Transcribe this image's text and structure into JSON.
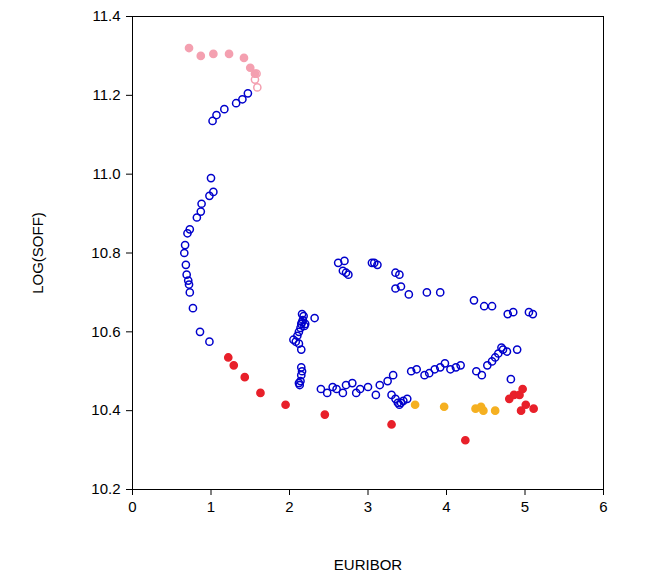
{
  "chart_data": {
    "type": "scatter",
    "x_label": "EURIBOR",
    "y_label": "LOG(SOFF)",
    "xlim": [
      0,
      6
    ],
    "ylim": [
      10.2,
      11.4
    ],
    "xticks": [
      0,
      1,
      2,
      3,
      4,
      5,
      6
    ],
    "yticks": [
      10.2,
      10.4,
      10.6,
      10.8,
      {
        "value": 11,
        "label": "11.0"
      },
      11.2,
      11.4
    ],
    "grid": false,
    "series": [
      {
        "color": "#0000cc",
        "marker": "hollow",
        "x": [
          1.47,
          1.4,
          1.32,
          1.17,
          1.07,
          1.02,
          1.0,
          1.03,
          0.98,
          0.88,
          0.87,
          0.82,
          0.73,
          0.7,
          0.67,
          0.66,
          0.68,
          0.69,
          0.71,
          0.72,
          0.73,
          0.77,
          0.86,
          0.98,
          2.05,
          2.08,
          2.12,
          2.15,
          2.1,
          2.12,
          2.14,
          2.15,
          2.16,
          2.17,
          2.18,
          2.16,
          2.19,
          2.2,
          2.32,
          2.15,
          2.16,
          2.15,
          2.14,
          2.13,
          2.12,
          2.4,
          2.48,
          2.55,
          2.6,
          2.68,
          2.72,
          2.8,
          2.85,
          2.9,
          3.0,
          3.1,
          3.15,
          3.25,
          3.3,
          3.35,
          3.38,
          3.4,
          3.42,
          3.45,
          3.5,
          3.32,
          3.55,
          3.62,
          3.72,
          3.78,
          3.85,
          3.92,
          3.98,
          4.05,
          4.12,
          4.18,
          4.38,
          4.45,
          4.52,
          4.58,
          4.62,
          4.66,
          4.7,
          4.72,
          4.77,
          4.82,
          4.9,
          2.62,
          2.7,
          2.68,
          2.72,
          2.75,
          3.05,
          3.08,
          3.12,
          3.35,
          3.4,
          3.35,
          3.42,
          3.52,
          3.75,
          3.92,
          4.35,
          4.48,
          4.58,
          4.78,
          4.85,
          5.05,
          5.1
        ],
        "y": [
          11.205,
          11.19,
          11.18,
          11.165,
          11.15,
          11.135,
          10.99,
          10.955,
          10.945,
          10.925,
          10.905,
          10.89,
          10.86,
          10.85,
          10.82,
          10.8,
          10.77,
          10.745,
          10.73,
          10.72,
          10.7,
          10.66,
          10.6,
          10.575,
          10.58,
          10.575,
          10.57,
          10.555,
          10.59,
          10.6,
          10.61,
          10.62,
          10.625,
          10.63,
          10.64,
          10.645,
          10.615,
          10.62,
          10.635,
          10.51,
          10.5,
          10.49,
          10.475,
          10.465,
          10.47,
          10.455,
          10.445,
          10.46,
          10.455,
          10.445,
          10.465,
          10.47,
          10.445,
          10.455,
          10.46,
          10.44,
          10.465,
          10.475,
          10.44,
          10.43,
          10.42,
          10.415,
          10.42,
          10.425,
          10.43,
          10.49,
          10.5,
          10.505,
          10.49,
          10.495,
          10.505,
          10.51,
          10.52,
          10.505,
          10.51,
          10.515,
          10.5,
          10.49,
          10.515,
          10.525,
          10.535,
          10.545,
          10.56,
          10.555,
          10.55,
          10.48,
          10.555,
          10.775,
          10.78,
          10.755,
          10.75,
          10.745,
          10.775,
          10.775,
          10.77,
          10.75,
          10.745,
          10.71,
          10.715,
          10.695,
          10.7,
          10.7,
          10.68,
          10.665,
          10.665,
          10.645,
          10.65,
          10.65,
          10.645
        ]
      },
      {
        "color": "#f4a0b0",
        "marker": "filled",
        "x": [
          0.72,
          0.87,
          1.03,
          1.23,
          1.42,
          1.5,
          1.56
        ],
        "y": [
          11.32,
          11.3,
          11.305,
          11.305,
          11.295,
          11.27,
          11.255
        ]
      },
      {
        "color": "#f4a0b0",
        "marker": "hollow",
        "x": [
          1.58,
          1.56,
          1.59
        ],
        "y": [
          11.255,
          11.24,
          11.22
        ]
      },
      {
        "color": "#e8202a",
        "marker": "filled",
        "x": [
          1.22,
          1.29,
          1.43,
          1.63,
          1.95,
          2.45,
          3.3,
          4.24,
          4.8,
          4.86,
          4.93,
          4.97,
          4.95,
          5.01,
          5.11
        ],
        "y": [
          10.535,
          10.515,
          10.485,
          10.445,
          10.415,
          10.39,
          10.365,
          10.325,
          10.43,
          10.44,
          10.44,
          10.455,
          10.4,
          10.415,
          10.405
        ]
      },
      {
        "color": "#f5b021",
        "marker": "filled",
        "x": [
          3.6,
          3.97,
          4.37,
          4.44,
          4.47,
          4.62
        ],
        "y": [
          10.415,
          10.41,
          10.405,
          10.41,
          10.4,
          10.4
        ]
      }
    ]
  }
}
